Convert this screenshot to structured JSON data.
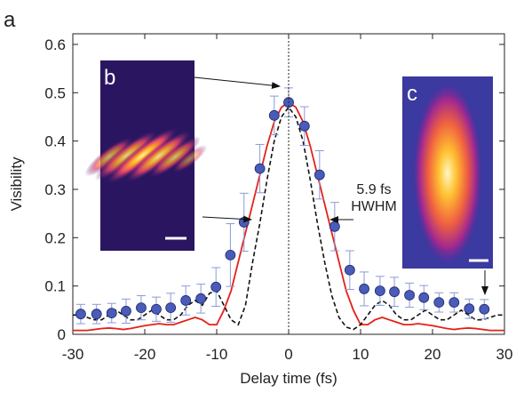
{
  "chart_data": {
    "type": "scatter",
    "panel_labels": [
      "a",
      "b",
      "c"
    ],
    "annotations": [
      "5.9 fs",
      "HWHM"
    ],
    "xlabel": "Delay time (fs)",
    "ylabel": "Visibility",
    "xlim": [
      -30,
      30
    ],
    "xticks": [
      -30,
      -20,
      -10,
      0,
      10,
      20,
      30
    ],
    "ylim": [
      0,
      0.622
    ],
    "yticks": [
      0,
      0.1,
      0.2,
      0.3,
      0.4,
      0.5,
      0.6
    ],
    "series": [
      {
        "type": "scatter",
        "color": "#4a5bb8",
        "error_color": "#8c9ad6",
        "x": [
          -28.9,
          -26.7,
          -24.6,
          -22.6,
          -20.5,
          -18.4,
          -16.4,
          -14.3,
          -12.2,
          -10.1,
          -8.1,
          -6.2,
          -4.0,
          -2.0,
          0,
          2.2,
          4.3,
          6.4,
          8.5,
          10.5,
          12.7,
          14.7,
          16.8,
          18.8,
          20.9,
          23.0,
          25.1,
          27.2
        ],
        "values": [
          0.042,
          0.042,
          0.044,
          0.048,
          0.055,
          0.052,
          0.055,
          0.07,
          0.074,
          0.098,
          0.164,
          0.232,
          0.343,
          0.453,
          0.48,
          0.431,
          0.33,
          0.223,
          0.133,
          0.094,
          0.09,
          0.088,
          0.081,
          0.076,
          0.066,
          0.066,
          0.053,
          0.052
        ],
        "errors": [
          0.02,
          0.02,
          0.02,
          0.025,
          0.025,
          0.025,
          0.03,
          0.03,
          0.03,
          0.04,
          0.065,
          0.06,
          0.05,
          0.04,
          0.03,
          0.04,
          0.05,
          0.05,
          0.04,
          0.035,
          0.03,
          0.03,
          0.025,
          0.025,
          0.02,
          0.02,
          0.02,
          0.02
        ]
      },
      {
        "type": "line",
        "color": "#e32119",
        "dashed": false,
        "x": [
          -30,
          -29,
          -28,
          -27,
          -26,
          -25,
          -24,
          -23,
          -22,
          -21,
          -20,
          -19,
          -18,
          -17,
          -16,
          -15,
          -14,
          -13,
          -12,
          -11,
          -10,
          -9,
          -8,
          -7,
          -6,
          -5,
          -4,
          -3,
          -2,
          -1,
          0,
          1,
          2,
          3,
          4,
          5,
          6,
          7,
          8,
          9,
          10,
          11,
          12,
          13,
          14,
          15,
          16,
          17,
          18,
          19,
          20,
          21,
          22,
          23,
          24,
          25,
          26,
          27,
          28,
          29,
          30
        ],
        "values": [
          0.008,
          0.008,
          0.008,
          0.01,
          0.012,
          0.013,
          0.012,
          0.01,
          0.012,
          0.015,
          0.018,
          0.02,
          0.022,
          0.02,
          0.02,
          0.025,
          0.03,
          0.035,
          0.03,
          0.02,
          0.02,
          0.05,
          0.09,
          0.15,
          0.21,
          0.27,
          0.33,
          0.39,
          0.44,
          0.47,
          0.48,
          0.47,
          0.44,
          0.39,
          0.33,
          0.27,
          0.21,
          0.15,
          0.09,
          0.05,
          0.02,
          0.02,
          0.03,
          0.035,
          0.03,
          0.025,
          0.02,
          0.02,
          0.022,
          0.02,
          0.018,
          0.015,
          0.012,
          0.01,
          0.012,
          0.013,
          0.012,
          0.01,
          0.008,
          0.008,
          0.008
        ]
      },
      {
        "type": "line",
        "color": "#111111",
        "dashed": true,
        "x": [
          -30,
          -29,
          -28,
          -27,
          -26,
          -25,
          -24,
          -23,
          -22,
          -21,
          -20,
          -19,
          -18,
          -17,
          -16,
          -15,
          -14,
          -13,
          -12,
          -11,
          -10,
          -9,
          -8,
          -7,
          -6,
          -5,
          -4,
          -3,
          -2,
          -1,
          0,
          1,
          2,
          3,
          4,
          5,
          6,
          7,
          8,
          9,
          10,
          11,
          12,
          13,
          14,
          15,
          16,
          17,
          18,
          19,
          20,
          21,
          22,
          23,
          24,
          25,
          26,
          27,
          28,
          29,
          30
        ],
        "values": [
          0.04,
          0.04,
          0.035,
          0.03,
          0.03,
          0.04,
          0.05,
          0.04,
          0.03,
          0.03,
          0.04,
          0.05,
          0.04,
          0.03,
          0.03,
          0.04,
          0.06,
          0.07,
          0.06,
          0.085,
          0.09,
          0.06,
          0.03,
          0.02,
          0.06,
          0.15,
          0.23,
          0.32,
          0.4,
          0.45,
          0.47,
          0.45,
          0.4,
          0.32,
          0.23,
          0.15,
          0.08,
          0.035,
          0.015,
          0.01,
          0.02,
          0.04,
          0.06,
          0.07,
          0.06,
          0.04,
          0.03,
          0.03,
          0.04,
          0.05,
          0.04,
          0.03,
          0.03,
          0.04,
          0.05,
          0.04,
          0.03,
          0.03,
          0.035,
          0.04,
          0.04
        ]
      }
    ]
  }
}
